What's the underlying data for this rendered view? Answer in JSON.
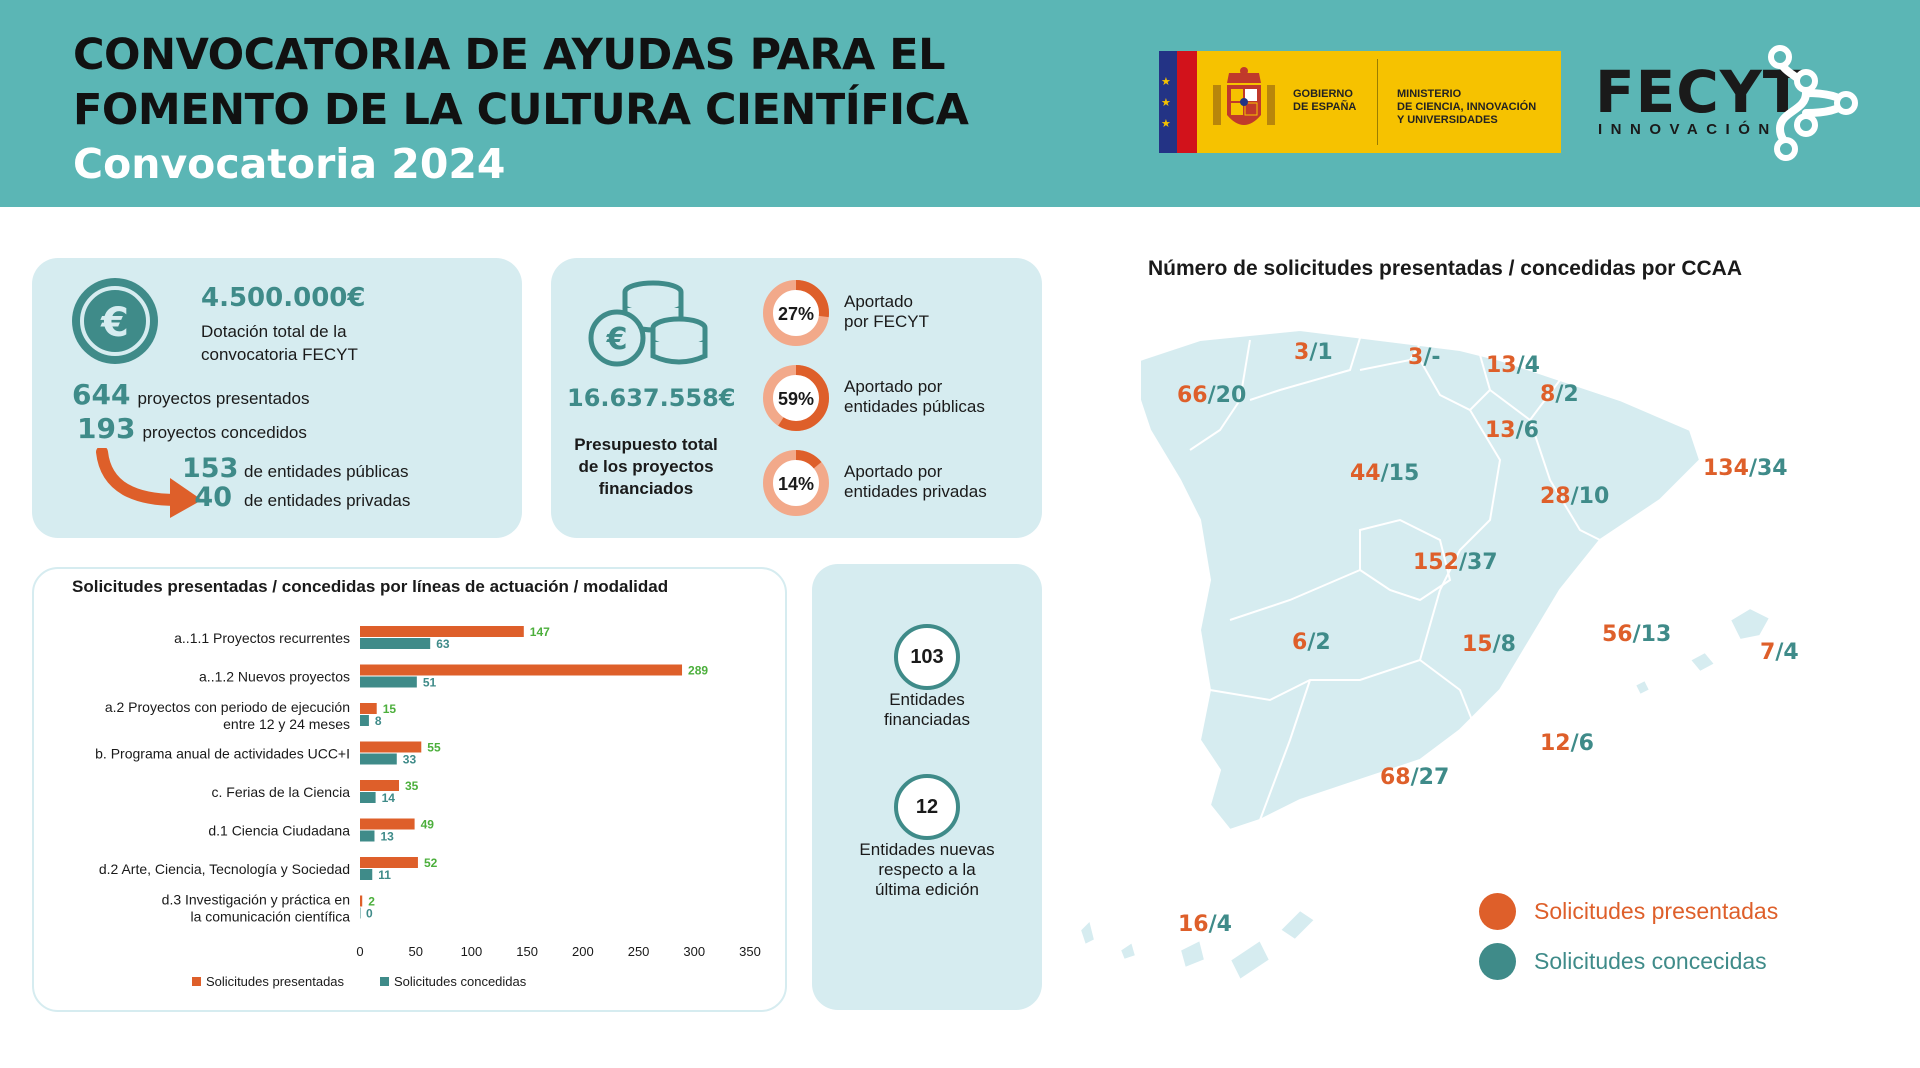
{
  "header": {
    "title_line1": "CONVOCATORIA DE AYUDAS PARA EL",
    "title_line2": "FOMENTO DE LA CULTURA CIENTÍFICA",
    "subtitle": "Convocatoria 2024",
    "gov_logo_text1_l1": "GOBIERNO",
    "gov_logo_text1_l2": "DE ESPAÑA",
    "gov_logo_text2_l1": "MINISTERIO",
    "gov_logo_text2_l2": "DE CIENCIA, INNOVACIÓN",
    "gov_logo_text2_l3": "Y UNIVERSIDADES",
    "fecyt_name": "FECYT",
    "fecyt_sub": "INNOVACIÓN"
  },
  "funding_card": {
    "amount": "4.500.000€",
    "amount_label_l1": "Dotación total de la",
    "amount_label_l2": "convocatoria FECYT",
    "presented_num": "644",
    "presented_label": "proyectos presentados",
    "granted_num": "193",
    "granted_label": "proyectos concedidos",
    "public_num": "153",
    "public_label": "de entidades públicas",
    "private_num": "40",
    "private_label": "de entidades privadas"
  },
  "budget_card": {
    "amount": "16.637.558€",
    "label_l1": "Presupuesto total",
    "label_l2": "de los proyectos",
    "label_l3": "financiados",
    "donuts": [
      {
        "pct": 27,
        "label": "27%",
        "text_l1": "Aportado",
        "text_l2": "por FECYT"
      },
      {
        "pct": 59,
        "label": "59%",
        "text_l1": "Aportado por",
        "text_l2": "entidades públicas"
      },
      {
        "pct": 14,
        "label": "14%",
        "text_l1": "Aportado por",
        "text_l2": "entidades privadas"
      }
    ]
  },
  "entities_card": {
    "financed_num": "103",
    "financed_l1": "Entidades",
    "financed_l2": "financiadas",
    "new_num": "12",
    "new_l1": "Entidades nuevas",
    "new_l2": "respecto a la",
    "new_l3": "última edición"
  },
  "colors": {
    "presented": "#de5f2a",
    "granted": "#3f8b89",
    "data_label": "#4caf3c",
    "header": "#5bb6b5",
    "card": "#d6ecf0",
    "map": "#d6ecf0"
  },
  "chart_data": {
    "type": "bar",
    "orientation": "horizontal",
    "title": "Solicitudes presentadas / concedidas por líneas de actuación / modalidad",
    "categories": [
      [
        "a..1.1 Proyectos recurrentes"
      ],
      [
        "a..1.2 Nuevos proyectos"
      ],
      [
        "a.2 Proyectos con periodo de ejecución",
        "entre 12 y 24 meses"
      ],
      [
        "b. Programa anual de actividades UCC+I"
      ],
      [
        "c. Ferias de la Ciencia"
      ],
      [
        "d.1 Ciencia Ciudadana"
      ],
      [
        "d.2 Arte, Ciencia, Tecnología y Sociedad"
      ],
      [
        "d.3 Investigación y práctica en",
        "la comunicación científica"
      ]
    ],
    "series": [
      {
        "name": "Solicitudes presentadas",
        "color": "#de5f2a",
        "values": [
          147,
          289,
          15,
          55,
          35,
          49,
          52,
          2
        ]
      },
      {
        "name": "Solicitudes concedidas",
        "color": "#3f8b89",
        "values": [
          63,
          51,
          8,
          33,
          14,
          13,
          11,
          0
        ]
      }
    ],
    "xlim": [
      0,
      350
    ],
    "xticks": [
      "0",
      "50",
      "100",
      "150",
      "200",
      "250",
      "300",
      "350"
    ],
    "legend": "bottom"
  },
  "map": {
    "title": "Número de solicitudes presentadas / concedidas por CCAA",
    "regions": [
      {
        "name": "Galicia",
        "p": "66",
        "c": "/20"
      },
      {
        "name": "Asturias",
        "p": "3",
        "c": "/1"
      },
      {
        "name": "Cantabria",
        "p": "3",
        "c": "/-"
      },
      {
        "name": "País Vasco",
        "p": "13",
        "c": "/4"
      },
      {
        "name": "Navarra",
        "p": "8",
        "c": "/2"
      },
      {
        "name": "La Rioja",
        "p": "13",
        "c": "/6"
      },
      {
        "name": "Castilla y León",
        "p": "44",
        "c": "/15"
      },
      {
        "name": "Aragón",
        "p": "28",
        "c": "/10"
      },
      {
        "name": "Cataluña",
        "p": "134",
        "c": "/34"
      },
      {
        "name": "Madrid",
        "p": "152",
        "c": "/37"
      },
      {
        "name": "Extremadura",
        "p": "6",
        "c": "/2"
      },
      {
        "name": "Castilla-La Mancha",
        "p": "15",
        "c": "/8"
      },
      {
        "name": "C. Valenciana",
        "p": "56",
        "c": "/13"
      },
      {
        "name": "Baleares",
        "p": "7",
        "c": "/4"
      },
      {
        "name": "Murcia",
        "p": "12",
        "c": "/6"
      },
      {
        "name": "Andalucía",
        "p": "68",
        "c": "/27"
      },
      {
        "name": "Canarias",
        "p": "16",
        "c": "/4"
      }
    ],
    "legend_presented": "Solicitudes presentadas",
    "legend_granted": "Solicitudes concecidas"
  }
}
